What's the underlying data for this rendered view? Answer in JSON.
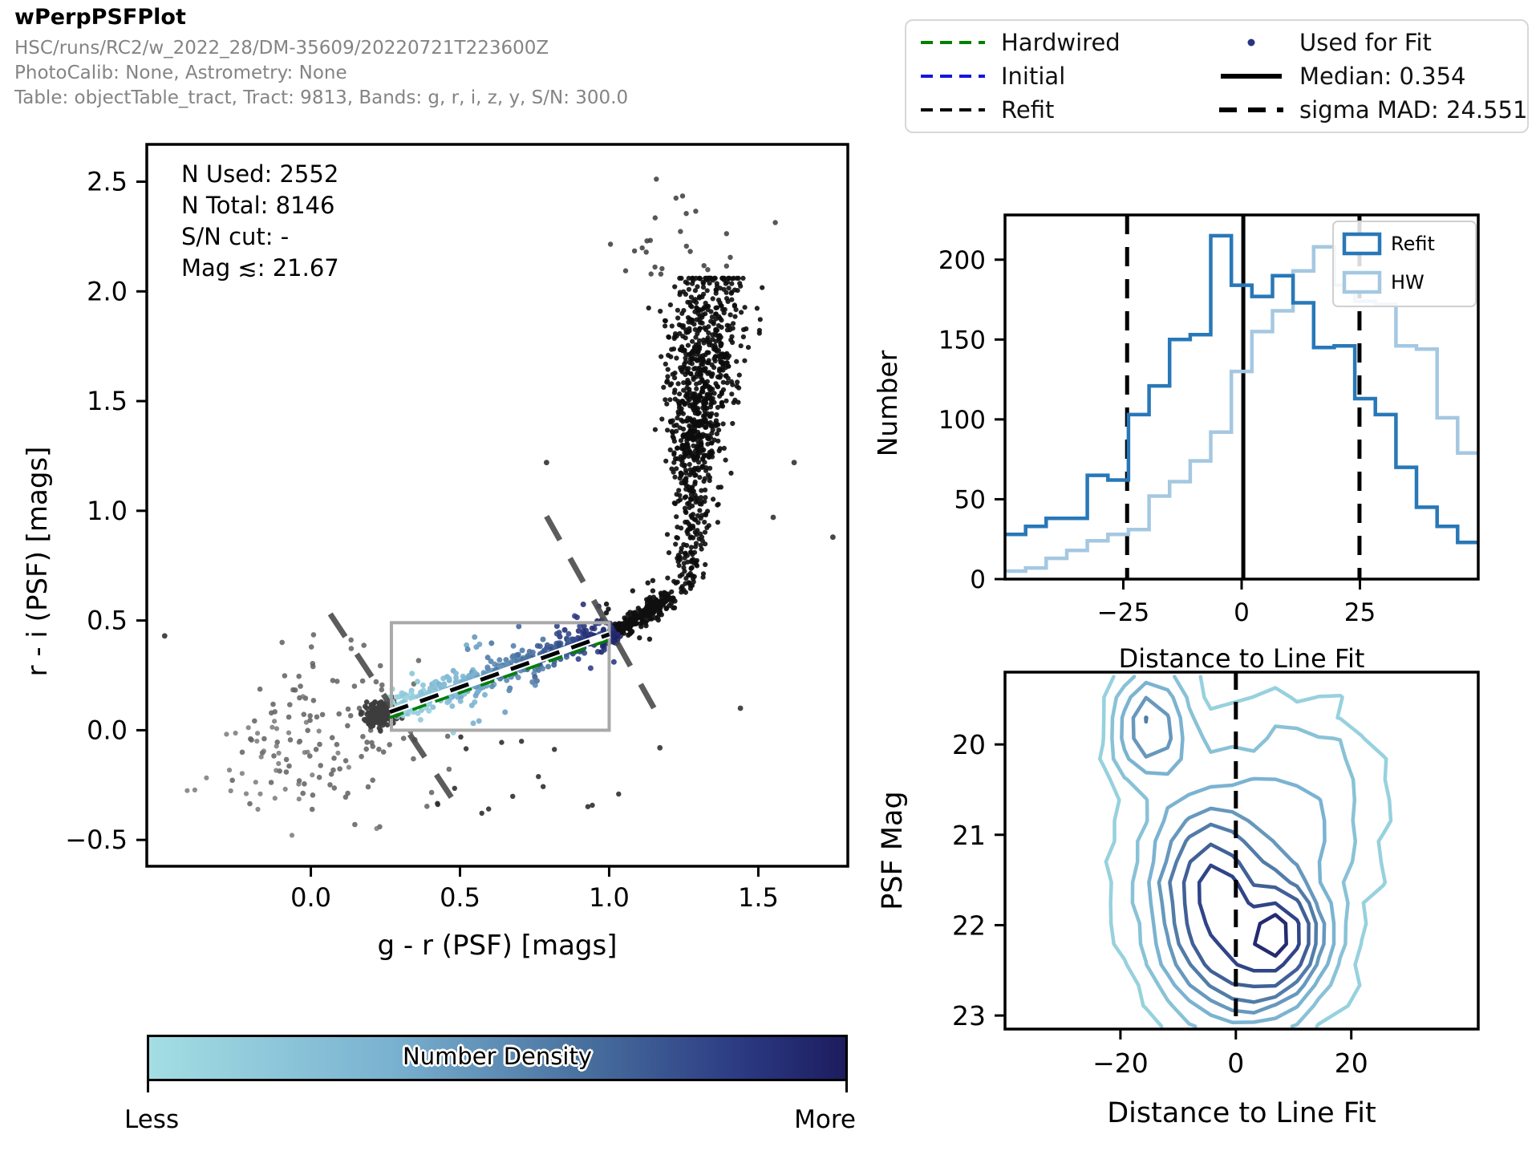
{
  "header": {
    "title": "wPerpPSFPlot",
    "subtitle1": "HSC/runs/RC2/w_2022_28/DM-35609/20220721T223600Z",
    "subtitle2": "PhotoCalib: None, Astrometry: None",
    "subtitle3": "Table: objectTable_tract, Tract: 9813, Bands: g, r, i, z, y, S/N: 300.0"
  },
  "legend": {
    "items_left": [
      {
        "label": "Hardwired",
        "color": "#008000",
        "style": "dashed"
      },
      {
        "label": "Initial",
        "color": "#1515e0",
        "style": "dashed"
      },
      {
        "label": "Refit",
        "color": "#000000",
        "style": "dashed"
      }
    ],
    "items_right": [
      {
        "label": "Used for Fit",
        "color": "#2a3580",
        "style": "dot"
      },
      {
        "label": "Median: 0.354",
        "color": "#000000",
        "style": "solid"
      },
      {
        "label": "sigma MAD: 24.551",
        "color": "#000000",
        "style": "dashed-thick"
      }
    ]
  },
  "colorbar": {
    "label": "Number Density",
    "less": "Less",
    "more": "More",
    "stops_t": [
      0,
      0.35,
      0.62,
      0.85,
      1
    ],
    "stops_c": [
      "#a3dee3",
      "#79b1d0",
      "#49719f",
      "#2b3a82",
      "#1d1c5f"
    ]
  },
  "chart_data": [
    {
      "type": "scatter",
      "name": "color-color-diagram",
      "stats": [
        "N Used: 2552",
        "N Total: 8146",
        "S/N cut: -",
        "Mag ≲: 21.67"
      ],
      "xlabel": "g - r (PSF) [mags]",
      "ylabel": "r - i (PSF) [mags]",
      "xlim": [
        -0.55,
        1.8
      ],
      "ylim": [
        -0.62,
        2.67
      ],
      "xticks": [
        0.0,
        0.5,
        1.0,
        1.5
      ],
      "xtick_labels": [
        "0.0",
        "0.5",
        "1.0",
        "1.5"
      ],
      "yticks": [
        2.5,
        2.0,
        1.5,
        1.0,
        0.5,
        0.0,
        -0.5
      ],
      "ytick_labels": [
        "2.5",
        "2.0",
        "1.5",
        "1.0",
        "0.5",
        "0.0",
        "−0.5"
      ],
      "fit_box": {
        "x0": 0.27,
        "y0": 0.0,
        "x1": 1.0,
        "y1": 0.49,
        "color": "#a9a9a9"
      },
      "fit_line": {
        "x0": 0.265,
        "y0": 0.083,
        "x1": 1.0,
        "y1": 0.437
      },
      "fit_line_colors": {
        "casing": "#ffffff",
        "refit": "#000000",
        "initial": "#1515e0",
        "hardwired": "#008000"
      },
      "cutoff_lines": [
        {
          "x0": 0.065,
          "y0": 0.53,
          "x1": 0.49,
          "y1": -0.345
        },
        {
          "x0": 0.79,
          "y0": 0.975,
          "x1": 1.165,
          "y1": 0.065
        }
      ],
      "cutoff_color": "#4a4a4a",
      "clusters": [
        {
          "type": "gauss",
          "n": 110,
          "cx": 0.05,
          "cy": 0.0,
          "sx": 0.17,
          "sy": 0.2,
          "color": "#5f5f5f",
          "opacity": 0.85,
          "r": 3.3
        },
        {
          "type": "gauss",
          "n": 40,
          "cx": -0.12,
          "cy": -0.12,
          "sx": 0.13,
          "sy": 0.14,
          "color": "#707070",
          "opacity": 0.8,
          "r": 3.1
        },
        {
          "type": "gauss",
          "n": 170,
          "cx": 0.235,
          "cy": 0.075,
          "sx": 0.031,
          "sy": 0.027,
          "color": "#3d3d3d",
          "opacity": 0.95,
          "r": 3.3
        },
        {
          "type": "line-density",
          "n": 580,
          "x0": 0.27,
          "y0": 0.09,
          "x1": 1.03,
          "y1": 0.455,
          "sigma": 0.026,
          "outlier_frac": 0.13,
          "outlier_sigma": 0.085,
          "r": 3.5
        },
        {
          "type": "line",
          "n": 240,
          "x0": 1.03,
          "y0": 0.46,
          "x1": 1.21,
          "y1": 0.61,
          "sigma": 0.018,
          "outlier_frac": 0.2,
          "outlier_sigma": 0.06,
          "color": "#0f0f0f",
          "opacity": 0.92,
          "r": 3.2
        },
        {
          "type": "plume",
          "n": 940,
          "x_base": 1.255,
          "x_slope": 0.055,
          "y_min": 0.62,
          "y_max": 2.06,
          "y_peak": 1.58,
          "y_sigma": 0.3,
          "color": "#0c0c0c",
          "opacity": 0.9,
          "r": 3.1
        },
        {
          "type": "gauss",
          "n": 26,
          "cx": 1.22,
          "cy": 2.22,
          "sx": 0.12,
          "sy": 0.12,
          "color": "#3a3a3a",
          "opacity": 0.85,
          "r": 3.2
        },
        {
          "type": "spray",
          "n": 16,
          "x0": 0.3,
          "x1": 1.05,
          "y0": -0.38,
          "y1": -0.03,
          "color": "#2f2f2f",
          "opacity": 0.9,
          "r": 3.2
        },
        {
          "type": "points",
          "pts": [
            [
              -0.49,
              0.43
            ],
            [
              0.79,
              1.22
            ],
            [
              1.62,
              1.22
            ],
            [
              1.75,
              0.88
            ],
            [
              1.55,
              0.97
            ],
            [
              1.44,
              0.1
            ],
            [
              1.17,
              -0.08
            ]
          ],
          "color": "#333333",
          "opacity": 0.9,
          "r": 3.4
        }
      ]
    },
    {
      "type": "histogram-step",
      "name": "distance-histogram",
      "xlabel": "Distance to Line Fit",
      "ylabel": "Number",
      "xlim": [
        -50,
        50
      ],
      "ylim": [
        0,
        228
      ],
      "xticks": [
        -25,
        0,
        25
      ],
      "xtick_labels": [
        "−25",
        "0",
        "25"
      ],
      "yticks": [
        0,
        50,
        100,
        150,
        200
      ],
      "ytick_labels": [
        "0",
        "50",
        "100",
        "150",
        "200"
      ],
      "median": 0.354,
      "sigma_mad": 24.551,
      "bin_start": -50,
      "bin_width": 4.3478,
      "series": [
        {
          "name": "Refit",
          "color": "#2878b8",
          "counts": [
            28,
            33,
            38,
            38,
            65,
            62,
            103,
            121,
            150,
            153,
            215,
            184,
            177,
            190,
            173,
            145,
            146,
            113,
            103,
            70,
            45,
            33,
            23
          ]
        },
        {
          "name": "HW",
          "color": "#a5c8e1",
          "counts": [
            5,
            7,
            13,
            18,
            24,
            28,
            31,
            52,
            61,
            74,
            92,
            130,
            155,
            168,
            193,
            208,
            184,
            174,
            172,
            146,
            144,
            101,
            79
          ]
        }
      ]
    },
    {
      "type": "contour",
      "name": "psfmag-distance-contour",
      "xlabel": "Distance to Line Fit",
      "ylabel": "PSF Mag",
      "xlim": [
        -40,
        42
      ],
      "ylim": [
        19.2,
        23.15
      ],
      "y_inverted": true,
      "xticks": [
        -20,
        0,
        20
      ],
      "xtick_labels": [
        "−20",
        "0",
        "20"
      ],
      "yticks": [
        20,
        21,
        22,
        23
      ],
      "ytick_labels": [
        "20",
        "21",
        "22",
        "23"
      ],
      "dashed_vline": 0,
      "grid": {
        "x0": -38,
        "x1": 40.5,
        "nx": 21,
        "y0": 19.25,
        "y1": 23.12,
        "ny": 17
      },
      "noise": 0.1,
      "gaussians": [
        [
          1.0,
          -5,
          21.6,
          8,
          0.8
        ],
        [
          1.05,
          3,
          22.35,
          10,
          0.62
        ],
        [
          0.9,
          8,
          22.05,
          5.5,
          0.5
        ],
        [
          0.85,
          -15,
          19.75,
          6.5,
          0.6
        ],
        [
          0.5,
          -3,
          21.55,
          3,
          0.28
        ],
        [
          0.5,
          8.5,
          22.05,
          2.2,
          0.28
        ],
        [
          0.55,
          0,
          21.6,
          22,
          1.9
        ],
        [
          0.3,
          14,
          20.5,
          14,
          1.2
        ]
      ],
      "levels": [
        0.24,
        0.4,
        0.58,
        0.78,
        1.0,
        1.3,
        1.7,
        2.1
      ]
    }
  ]
}
